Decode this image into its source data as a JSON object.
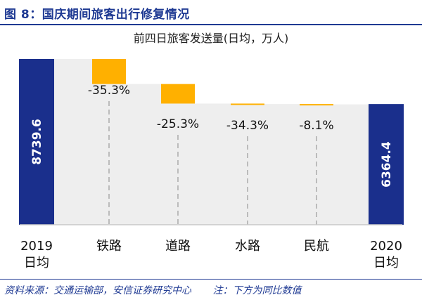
{
  "figure": {
    "title": "图 8：国庆期间旅客出行修复情况",
    "source": "资料来源：交通运输部，安信证券研究中心",
    "note": "注：下方为同比数值"
  },
  "colors": {
    "total_bar": "#1a2f8c",
    "decrease_bar": "#ffb000",
    "connector_fill": "#eeeeee",
    "title": "#1f3a93"
  },
  "chart_data": {
    "type": "bar",
    "subtype": "waterfall",
    "title": "前四日旅客发送量(日均，万人)",
    "categories": [
      [
        "2019",
        "日均"
      ],
      [
        "铁路"
      ],
      [
        "道路"
      ],
      [
        "水路"
      ],
      [
        "民航"
      ],
      [
        "2020",
        "日均"
      ]
    ],
    "start_total": 8739.6,
    "end_total": 6364.4,
    "changes": [
      -1320,
      -1030,
      -25,
      -20
    ],
    "yoy_labels": [
      "-35.3%",
      "-25.3%",
      "-34.3%",
      "-8.1%"
    ],
    "total_labels": [
      "8739.6",
      "6364.4"
    ],
    "ylim": [
      0,
      8739.6
    ]
  }
}
